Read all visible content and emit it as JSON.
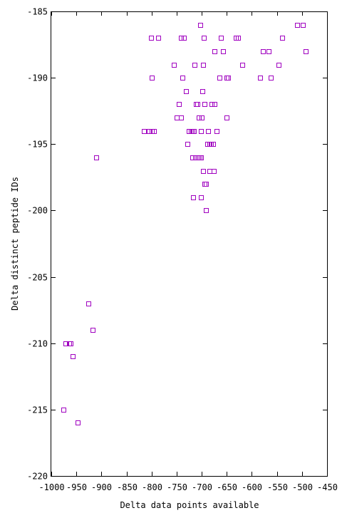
{
  "chart_data": {
    "type": "scatter",
    "title": "",
    "xlabel": "Delta data points available",
    "ylabel": "Delta distinct peptide IDs",
    "xlim": [
      -1000,
      -450
    ],
    "ylim": [
      -220,
      -185
    ],
    "xticks": [
      -1000,
      -950,
      -900,
      -850,
      -800,
      -750,
      -700,
      -650,
      -600,
      -550,
      -500,
      -450
    ],
    "yticks": [
      -220,
      -215,
      -210,
      -205,
      -200,
      -195,
      -190,
      -185
    ],
    "grid": false,
    "marker_color": "#a000c0",
    "series": [
      {
        "points": [
          [
            -976,
            -215
          ],
          [
            -972,
            -210
          ],
          [
            -964,
            -210
          ],
          [
            -961,
            -210
          ],
          [
            -958,
            -211
          ],
          [
            -948,
            -216
          ],
          [
            -926,
            -207
          ],
          [
            -918,
            -209
          ],
          [
            -910,
            -196
          ],
          [
            -815,
            -194
          ],
          [
            -805,
            -194
          ],
          [
            -799,
            -194
          ],
          [
            -795,
            -194
          ],
          [
            -801,
            -187
          ],
          [
            -787,
            -187
          ],
          [
            -799,
            -190
          ],
          [
            -755,
            -189
          ],
          [
            -750,
            -193
          ],
          [
            -745,
            -192
          ],
          [
            -742,
            -193
          ],
          [
            -741,
            -187
          ],
          [
            -736,
            -187
          ],
          [
            -739,
            -190
          ],
          [
            -731,
            -191
          ],
          [
            -729,
            -195
          ],
          [
            -726,
            -194
          ],
          [
            -722,
            -194
          ],
          [
            -719,
            -194
          ],
          [
            -716,
            -194
          ],
          [
            -718,
            -196
          ],
          [
            -713,
            -196
          ],
          [
            -714,
            -189
          ],
          [
            -712,
            -192
          ],
          [
            -708,
            -192
          ],
          [
            -707,
            -196
          ],
          [
            -704,
            -196
          ],
          [
            -702,
            -196
          ],
          [
            -703,
            -186
          ],
          [
            -706,
            -193
          ],
          [
            -700,
            -193
          ],
          [
            -702,
            -194
          ],
          [
            -701,
            -199
          ],
          [
            -717,
            -199
          ],
          [
            -699,
            -191
          ],
          [
            -696,
            -187
          ],
          [
            -697,
            -189
          ],
          [
            -694,
            -192
          ],
          [
            -697,
            -197
          ],
          [
            -695,
            -198
          ],
          [
            -691,
            -198
          ],
          [
            -691,
            -200
          ],
          [
            -689,
            -195
          ],
          [
            -687,
            -194
          ],
          [
            -685,
            -195
          ],
          [
            -682,
            -195
          ],
          [
            -678,
            -195
          ],
          [
            -685,
            -197
          ],
          [
            -676,
            -197
          ],
          [
            -680,
            -192
          ],
          [
            -674,
            -192
          ],
          [
            -675,
            -188
          ],
          [
            -670,
            -194
          ],
          [
            -665,
            -190
          ],
          [
            -662,
            -187
          ],
          [
            -658,
            -188
          ],
          [
            -651,
            -190
          ],
          [
            -648,
            -190
          ],
          [
            -651,
            -193
          ],
          [
            -632,
            -187
          ],
          [
            -628,
            -187
          ],
          [
            -619,
            -189
          ],
          [
            -583,
            -190
          ],
          [
            -578,
            -188
          ],
          [
            -567,
            -188
          ],
          [
            -562,
            -190
          ],
          [
            -547,
            -189
          ],
          [
            -539,
            -187
          ],
          [
            -510,
            -186
          ],
          [
            -499,
            -186
          ],
          [
            -493,
            -188
          ]
        ]
      }
    ]
  }
}
